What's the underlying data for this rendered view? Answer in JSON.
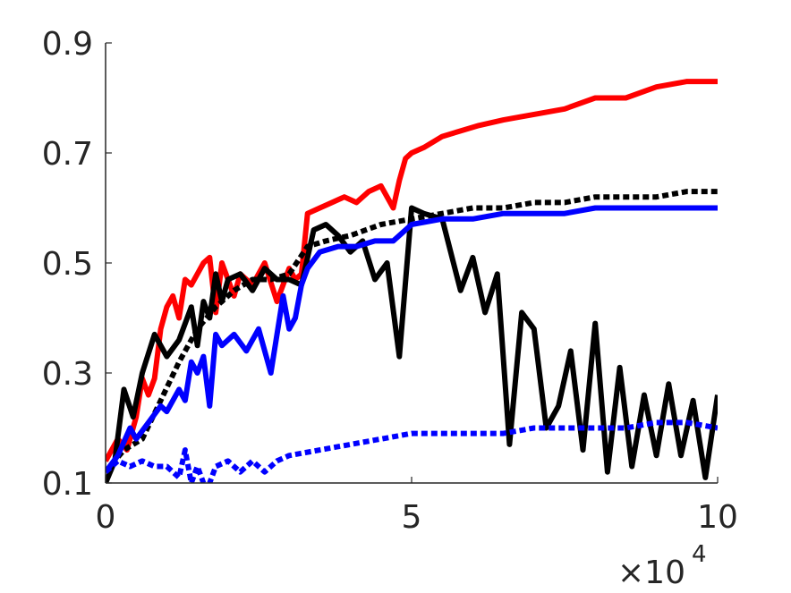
{
  "chart_data": {
    "type": "line",
    "title": "",
    "xlabel": "",
    "ylabel": "",
    "x_multiplier_label": "×10",
    "x_multiplier_exponent": "4",
    "xlim": [
      0,
      10
    ],
    "ylim": [
      0.1,
      0.9
    ],
    "xticks": [
      0,
      5,
      10
    ],
    "xtick_labels": [
      "0",
      "5",
      "10"
    ],
    "yticks": [
      0.1,
      0.3,
      0.5,
      0.7,
      0.9
    ],
    "ytick_labels": [
      "0.1",
      "0.3",
      "0.5",
      "0.7",
      "0.9"
    ],
    "grid": false,
    "legend": "none",
    "series": [
      {
        "color": "#ff0000",
        "style": "solid",
        "x": [
          0.0,
          0.2,
          0.35,
          0.5,
          0.6,
          0.7,
          0.8,
          0.9,
          1.0,
          1.1,
          1.2,
          1.3,
          1.4,
          1.5,
          1.6,
          1.7,
          1.8,
          1.9,
          2.0,
          2.1,
          2.2,
          2.4,
          2.6,
          2.8,
          3.0,
          3.1,
          3.2,
          3.3,
          3.5,
          3.7,
          3.9,
          4.1,
          4.3,
          4.5,
          4.7,
          4.8,
          4.9,
          5.0,
          5.2,
          5.5,
          5.8,
          6.1,
          6.5,
          7.0,
          7.5,
          8.0,
          8.5,
          9.0,
          9.5,
          9.8,
          10.0
        ],
        "y": [
          0.14,
          0.18,
          0.16,
          0.22,
          0.29,
          0.26,
          0.29,
          0.38,
          0.42,
          0.44,
          0.4,
          0.47,
          0.46,
          0.48,
          0.5,
          0.51,
          0.41,
          0.5,
          0.47,
          0.44,
          0.48,
          0.46,
          0.5,
          0.43,
          0.49,
          0.47,
          0.48,
          0.59,
          0.6,
          0.61,
          0.62,
          0.61,
          0.63,
          0.64,
          0.6,
          0.65,
          0.69,
          0.7,
          0.71,
          0.73,
          0.74,
          0.75,
          0.76,
          0.77,
          0.78,
          0.8,
          0.8,
          0.82,
          0.83,
          0.83,
          0.83
        ]
      },
      {
        "color": "#000000",
        "style": "solid",
        "x": [
          0.0,
          0.15,
          0.3,
          0.45,
          0.6,
          0.8,
          1.0,
          1.2,
          1.4,
          1.5,
          1.6,
          1.7,
          1.8,
          1.9,
          2.0,
          2.2,
          2.4,
          2.6,
          2.8,
          3.0,
          3.2,
          3.4,
          3.6,
          3.8,
          4.0,
          4.2,
          4.4,
          4.6,
          4.8,
          5.0,
          5.2,
          5.5,
          5.8,
          6.0,
          6.2,
          6.4,
          6.6,
          6.8,
          7.0,
          7.2,
          7.4,
          7.6,
          7.8,
          8.0,
          8.2,
          8.4,
          8.6,
          8.8,
          9.0,
          9.2,
          9.4,
          9.6,
          9.8,
          10.0
        ],
        "y": [
          0.1,
          0.14,
          0.27,
          0.22,
          0.3,
          0.37,
          0.33,
          0.36,
          0.42,
          0.35,
          0.43,
          0.4,
          0.48,
          0.43,
          0.47,
          0.48,
          0.45,
          0.49,
          0.47,
          0.47,
          0.46,
          0.56,
          0.57,
          0.55,
          0.52,
          0.54,
          0.47,
          0.5,
          0.33,
          0.6,
          0.59,
          0.58,
          0.45,
          0.51,
          0.41,
          0.48,
          0.17,
          0.41,
          0.38,
          0.2,
          0.24,
          0.34,
          0.16,
          0.39,
          0.12,
          0.31,
          0.13,
          0.26,
          0.15,
          0.28,
          0.15,
          0.25,
          0.11,
          0.26
        ]
      },
      {
        "color": "#000000",
        "style": "dotted",
        "x": [
          0.0,
          0.3,
          0.6,
          0.9,
          1.2,
          1.5,
          1.8,
          2.1,
          2.4,
          2.7,
          3.0,
          3.3,
          3.6,
          4.0,
          4.5,
          5.0,
          5.5,
          6.0,
          6.5,
          7.0,
          7.5,
          8.0,
          8.5,
          9.0,
          9.5,
          10.0
        ],
        "y": [
          0.12,
          0.16,
          0.18,
          0.25,
          0.32,
          0.38,
          0.42,
          0.45,
          0.47,
          0.47,
          0.48,
          0.53,
          0.54,
          0.55,
          0.57,
          0.58,
          0.59,
          0.6,
          0.6,
          0.61,
          0.61,
          0.62,
          0.62,
          0.62,
          0.63,
          0.63
        ]
      },
      {
        "color": "#0000ff",
        "style": "solid",
        "x": [
          0.0,
          0.2,
          0.4,
          0.5,
          0.7,
          0.9,
          1.0,
          1.2,
          1.3,
          1.4,
          1.5,
          1.6,
          1.7,
          1.8,
          1.9,
          2.1,
          2.3,
          2.5,
          2.7,
          2.9,
          3.0,
          3.1,
          3.2,
          3.3,
          3.5,
          3.8,
          4.1,
          4.4,
          4.7,
          5.0,
          5.5,
          6.0,
          6.5,
          7.0,
          7.5,
          8.0,
          8.5,
          9.0,
          9.5,
          10.0
        ],
        "y": [
          0.12,
          0.15,
          0.2,
          0.18,
          0.21,
          0.24,
          0.23,
          0.27,
          0.25,
          0.32,
          0.3,
          0.33,
          0.24,
          0.37,
          0.35,
          0.37,
          0.34,
          0.38,
          0.3,
          0.44,
          0.38,
          0.4,
          0.46,
          0.49,
          0.52,
          0.53,
          0.53,
          0.54,
          0.54,
          0.57,
          0.58,
          0.58,
          0.59,
          0.59,
          0.59,
          0.6,
          0.6,
          0.6,
          0.6,
          0.6
        ]
      },
      {
        "color": "#0000ff",
        "style": "dotted",
        "x": [
          0.0,
          0.2,
          0.4,
          0.6,
          0.8,
          1.0,
          1.1,
          1.2,
          1.3,
          1.4,
          1.5,
          1.6,
          1.7,
          1.8,
          2.0,
          2.2,
          2.4,
          2.6,
          2.8,
          3.0,
          3.5,
          4.0,
          4.5,
          5.0,
          5.5,
          6.0,
          6.5,
          7.0,
          7.5,
          8.0,
          8.5,
          9.0,
          9.5,
          10.0
        ],
        "y": [
          0.12,
          0.14,
          0.13,
          0.14,
          0.13,
          0.13,
          0.12,
          0.11,
          0.16,
          0.1,
          0.13,
          0.1,
          0.1,
          0.13,
          0.14,
          0.12,
          0.14,
          0.12,
          0.14,
          0.15,
          0.16,
          0.17,
          0.18,
          0.19,
          0.19,
          0.19,
          0.19,
          0.2,
          0.2,
          0.2,
          0.2,
          0.21,
          0.21,
          0.2
        ]
      }
    ]
  }
}
